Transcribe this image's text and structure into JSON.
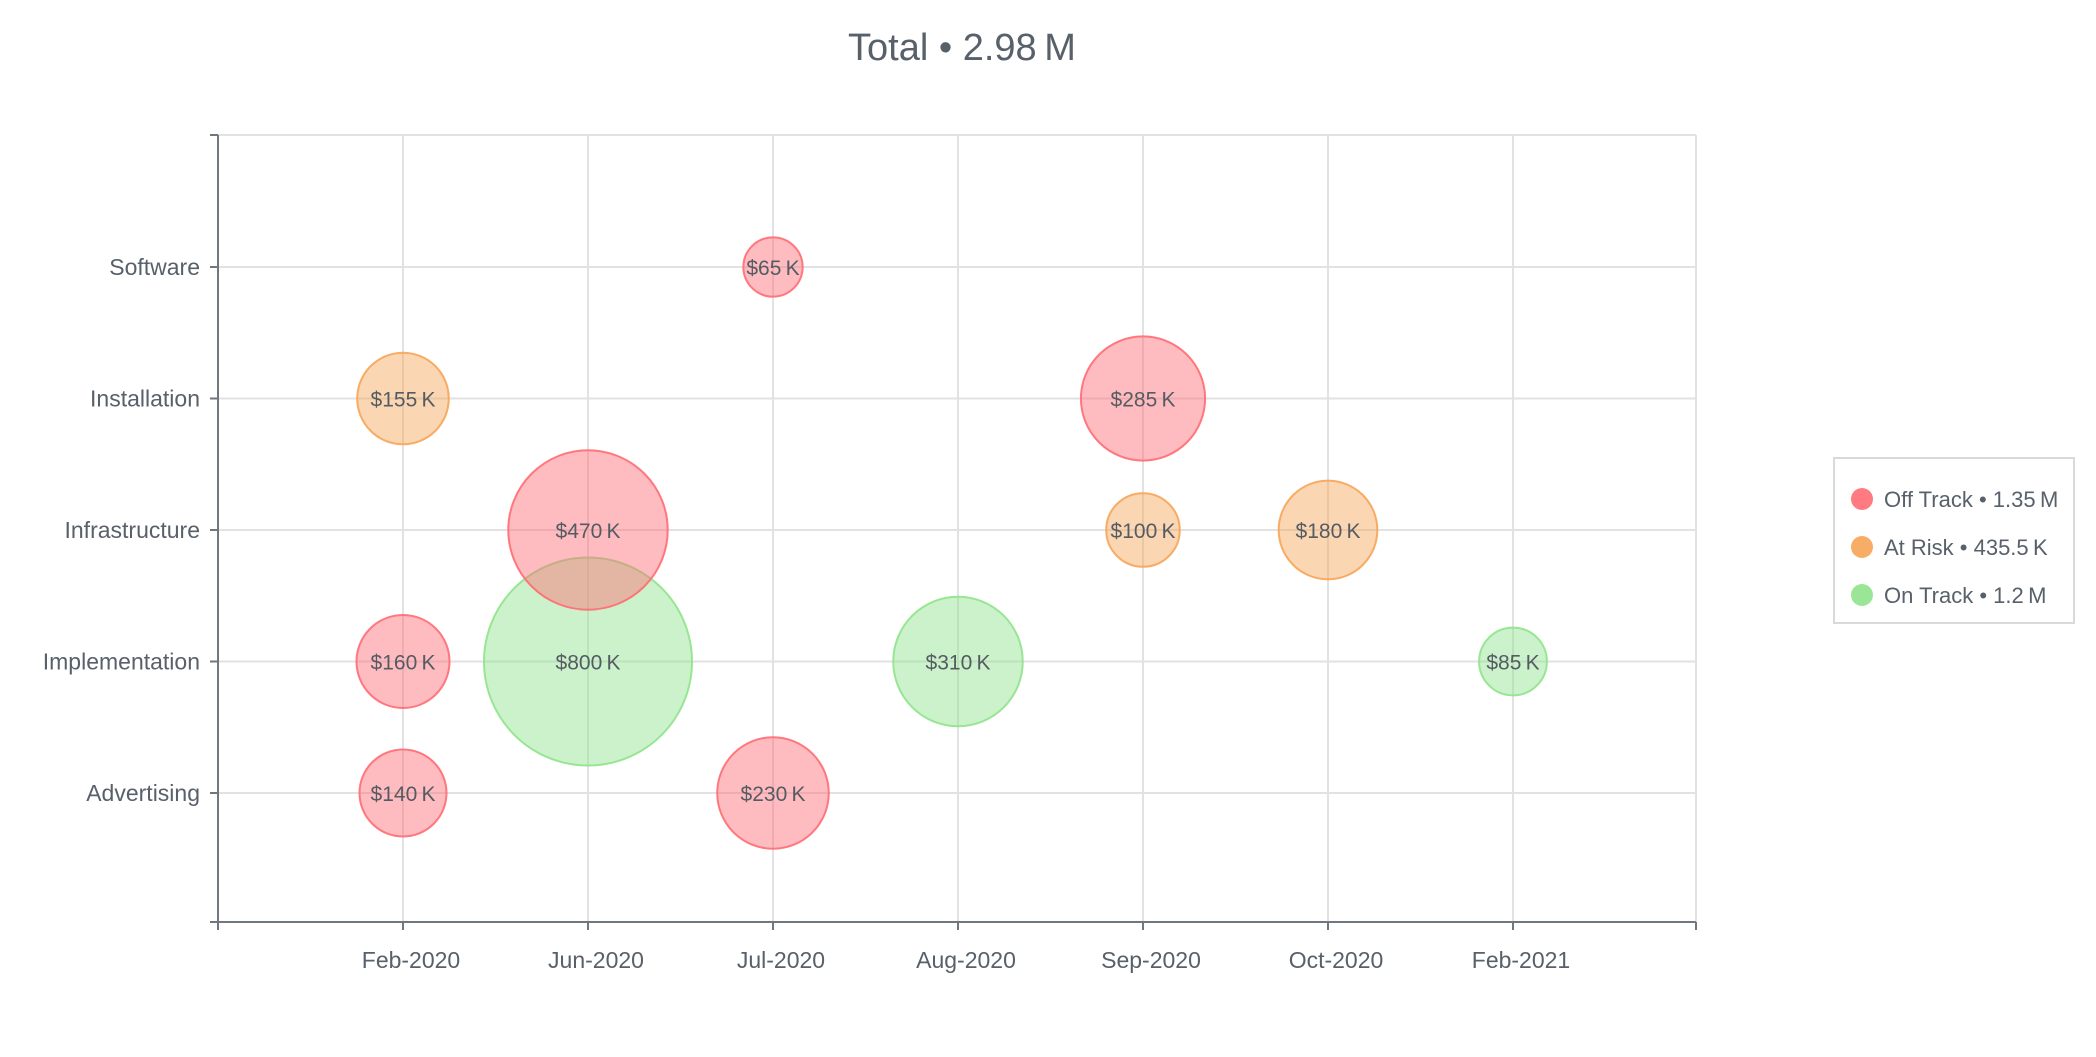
{
  "chart_data": {
    "type": "bubble",
    "title": "Total • 2.98 M",
    "xlabel": "",
    "ylabel": "",
    "categories_x": [
      "Feb-2020",
      "Jun-2020",
      "Jul-2020",
      "Aug-2020",
      "Sep-2020",
      "Oct-2020",
      "Feb-2021"
    ],
    "categories_y": [
      "Software",
      "Installation",
      "Infrastructure",
      "Implementation",
      "Advertising"
    ],
    "grid": true,
    "legend_position": "right",
    "series": [
      {
        "name": "Off Track • 1.35 M",
        "color": "#ff6b73",
        "points": [
          {
            "x": "Jul-2020",
            "y": "Software",
            "value": 65,
            "label": "$65 K"
          },
          {
            "x": "Sep-2020",
            "y": "Installation",
            "value": 285,
            "label": "$285 K"
          },
          {
            "x": "Jun-2020",
            "y": "Infrastructure",
            "value": 470,
            "label": "$470 K"
          },
          {
            "x": "Feb-2020",
            "y": "Implementation",
            "value": 160,
            "label": "$160 K"
          },
          {
            "x": "Feb-2020",
            "y": "Advertising",
            "value": 140,
            "label": "$140 K"
          },
          {
            "x": "Jul-2020",
            "y": "Advertising",
            "value": 230,
            "label": "$230 K"
          }
        ]
      },
      {
        "name": "At Risk • 435.5 K",
        "color": "#f7a456",
        "points": [
          {
            "x": "Feb-2020",
            "y": "Installation",
            "value": 155,
            "label": "$155 K"
          },
          {
            "x": "Sep-2020",
            "y": "Infrastructure",
            "value": 100,
            "label": "$100 K"
          },
          {
            "x": "Oct-2020",
            "y": "Infrastructure",
            "value": 180,
            "label": "$180 K"
          }
        ]
      },
      {
        "name": "On Track • 1.2 M",
        "color": "#8fe38b",
        "points": [
          {
            "x": "Jun-2020",
            "y": "Implementation",
            "value": 800,
            "label": "$800 K"
          },
          {
            "x": "Aug-2020",
            "y": "Implementation",
            "value": 310,
            "label": "$310 K"
          },
          {
            "x": "Feb-2021",
            "y": "Implementation",
            "value": 85,
            "label": "$85 K"
          }
        ]
      }
    ]
  }
}
